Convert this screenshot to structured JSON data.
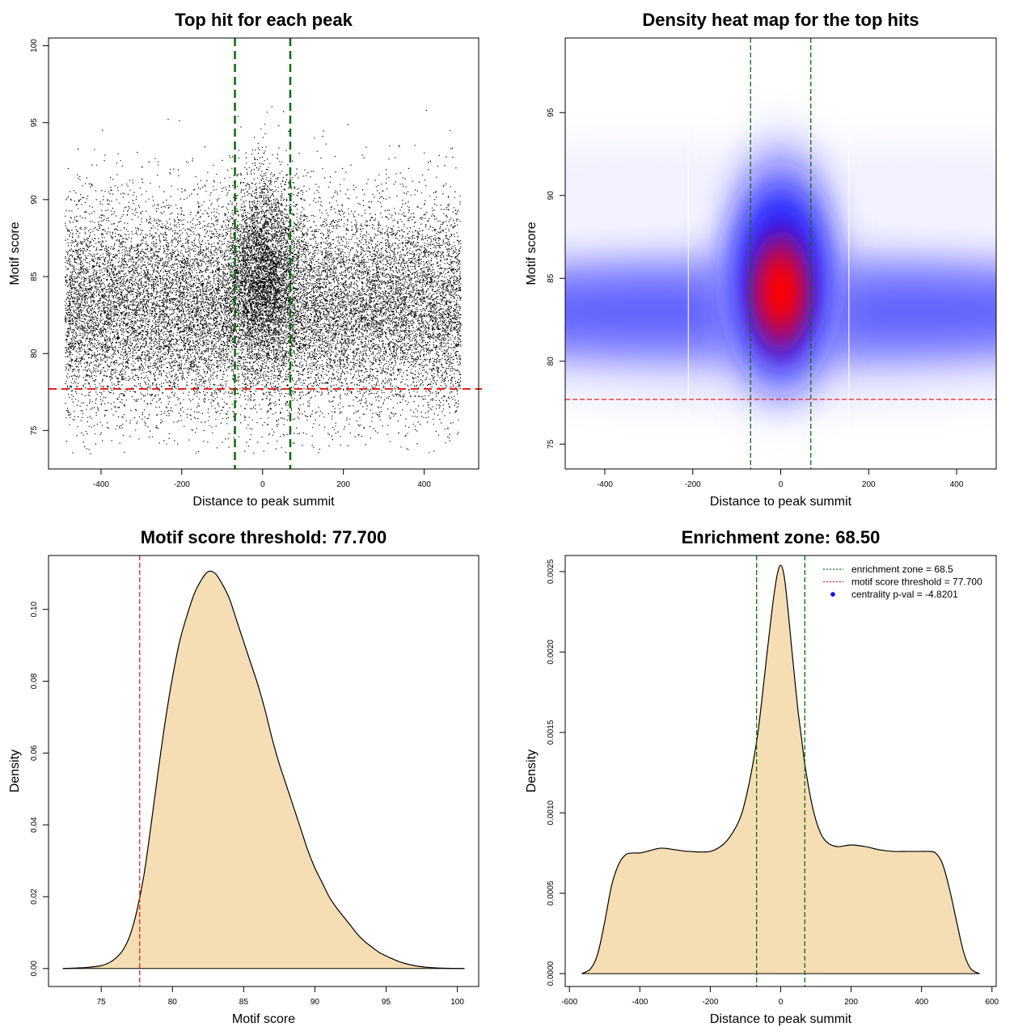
{
  "chart_data": [
    {
      "type": "scatter",
      "title": "Top hit for each peak",
      "xlabel": "Distance to peak summit",
      "ylabel": "Motif score",
      "xlim": [
        -530,
        535
      ],
      "ylim": [
        72.5,
        100.5
      ],
      "xticks": [
        -400,
        -200,
        0,
        200,
        400
      ],
      "yticks": [
        75,
        80,
        85,
        90,
        95,
        100
      ],
      "xtick_labels": [
        "-400",
        "-200",
        "0",
        "200",
        "400"
      ],
      "ytick_labels": [
        "75",
        "80",
        "85",
        "90",
        "95",
        "100"
      ],
      "threshold_y": 77.7,
      "zone_x": [
        -68.5,
        68.5
      ],
      "threshold_color": "#e8211c",
      "zone_color": "#0a6b0a",
      "point_color": "#000000",
      "n_points": 22000,
      "points_x_range": [
        -490,
        490
      ],
      "background_mean": 83,
      "background_sd": 3.4,
      "central_mean": 85.5,
      "central_sd": 3.2,
      "central_sd_x": 45,
      "central_fraction": 0.16,
      "grid": false
    },
    {
      "type": "heatmap",
      "title": "Density heat map for the top hits",
      "xlabel": "Distance to peak summit",
      "ylabel": "Motif score",
      "xlim": [
        -490,
        490
      ],
      "ylim": [
        73.5,
        99.5
      ],
      "xticks": [
        -400,
        -200,
        0,
        200,
        400
      ],
      "yticks": [
        75,
        80,
        85,
        90,
        95
      ],
      "xtick_labels": [
        "-400",
        "-200",
        "0",
        "200",
        "400"
      ],
      "ytick_labels": [
        "75",
        "80",
        "85",
        "90",
        "95"
      ],
      "threshold_y": 77.7,
      "zone_x": [
        -68.5,
        68.5
      ],
      "threshold_color": "#e8211c",
      "zone_color": "#0a6b0a",
      "colormap": [
        "#ffffff",
        "#0000ff",
        "#ff0000"
      ],
      "peak_x": 0,
      "peak_y": 84.2,
      "background_center_y": 83,
      "grid": false
    },
    {
      "type": "area",
      "title": "Motif score threshold: 77.700",
      "xlabel": "Motif score",
      "ylabel": "Density",
      "xlim": [
        71.3,
        101.5
      ],
      "ylim": [
        -0.005,
        0.115
      ],
      "xticks": [
        75,
        80,
        85,
        90,
        95,
        100
      ],
      "yticks": [
        0.0,
        0.02,
        0.04,
        0.06,
        0.08,
        0.1
      ],
      "xtick_labels": [
        "75",
        "80",
        "85",
        "90",
        "95",
        "100"
      ],
      "ytick_labels": [
        "0.00",
        "0.02",
        "0.04",
        "0.06",
        "0.08",
        "0.10"
      ],
      "x": [
        72.3,
        73,
        74,
        75,
        75.5,
        76,
        76.5,
        77,
        77.5,
        78,
        78.5,
        79,
        79.5,
        80,
        80.5,
        81,
        81.5,
        82,
        82.5,
        83,
        83.5,
        84,
        84.5,
        85,
        85.5,
        86,
        86.5,
        87,
        87.5,
        88,
        88.5,
        89,
        89.5,
        90,
        90.5,
        91,
        91.5,
        92,
        92.5,
        93,
        93.5,
        94,
        94.5,
        95,
        96,
        97,
        98,
        99,
        100.5
      ],
      "y": [
        0.0,
        0.0001,
        0.0003,
        0.0008,
        0.0015,
        0.0028,
        0.005,
        0.009,
        0.016,
        0.026,
        0.04,
        0.055,
        0.069,
        0.081,
        0.091,
        0.098,
        0.104,
        0.108,
        0.1105,
        0.11,
        0.107,
        0.103,
        0.097,
        0.091,
        0.085,
        0.079,
        0.072,
        0.064,
        0.057,
        0.051,
        0.045,
        0.039,
        0.033,
        0.028,
        0.024,
        0.02,
        0.017,
        0.0145,
        0.012,
        0.0095,
        0.0075,
        0.006,
        0.0045,
        0.0035,
        0.0018,
        0.0008,
        0.0003,
        0.0001,
        0.0
      ],
      "threshold_x": 77.7,
      "threshold_color": "#e8211c",
      "fill_color": "#f5deb3",
      "grid": false
    },
    {
      "type": "area",
      "title": "Enrichment zone: 68.50",
      "xlabel": "Distance to peak summit",
      "ylabel": "Density",
      "xlim": [
        -612,
        612
      ],
      "ylim": [
        -8e-05,
        0.0026
      ],
      "xticks": [
        -600,
        -400,
        -200,
        0,
        200,
        400,
        600
      ],
      "yticks": [
        0.0,
        0.0005,
        0.001,
        0.0015,
        0.002,
        0.0025
      ],
      "xtick_labels": [
        "-600",
        "-400",
        "-200",
        "0",
        "200",
        "400",
        "600"
      ],
      "ytick_labels": [
        "0.0000",
        "0.0005",
        "0.0010",
        "0.0015",
        "0.0020",
        "0.0025"
      ],
      "x": [
        -565,
        -540,
        -520,
        -500,
        -480,
        -460,
        -440,
        -420,
        -400,
        -380,
        -340,
        -300,
        -260,
        -200,
        -160,
        -130,
        -110,
        -90,
        -70,
        -60,
        -50,
        -40,
        -30,
        -20,
        -10,
        0,
        10,
        20,
        30,
        40,
        50,
        60,
        70,
        90,
        110,
        130,
        160,
        200,
        240,
        280,
        320,
        360,
        400,
        420,
        440,
        460,
        480,
        500,
        520,
        540,
        565
      ],
      "y": [
        0.0,
        3e-05,
        0.00012,
        0.00032,
        0.00055,
        0.00068,
        0.00074,
        0.00075,
        0.00075,
        0.00076,
        0.00078,
        0.00077,
        0.00076,
        0.00076,
        0.00081,
        0.0009,
        0.001,
        0.00118,
        0.00142,
        0.00158,
        0.00177,
        0.00197,
        0.00216,
        0.00234,
        0.00248,
        0.00254,
        0.00247,
        0.00228,
        0.00205,
        0.00183,
        0.00162,
        0.00145,
        0.00128,
        0.00104,
        0.00089,
        0.00082,
        0.00079,
        0.0008,
        0.00079,
        0.00077,
        0.00076,
        0.00076,
        0.00076,
        0.00076,
        0.00075,
        0.00068,
        0.00052,
        0.00032,
        0.00013,
        3e-05,
        0.0
      ],
      "zone_x": [
        -68.5,
        68.5
      ],
      "zone_color": "#0a6b0a",
      "fill_color": "#f5deb3",
      "legend": [
        {
          "label": "enrichment zone = 68.5",
          "style": "dotted-line",
          "color": "#0a6b0a"
        },
        {
          "label": "motif score threshold = 77.700",
          "style": "dotted-line",
          "color": "#e8211c"
        },
        {
          "label": "centrality p-val = -4.8201",
          "style": "point",
          "color": "#0000ff"
        }
      ],
      "legend_position": "top-right",
      "grid": false
    }
  ]
}
